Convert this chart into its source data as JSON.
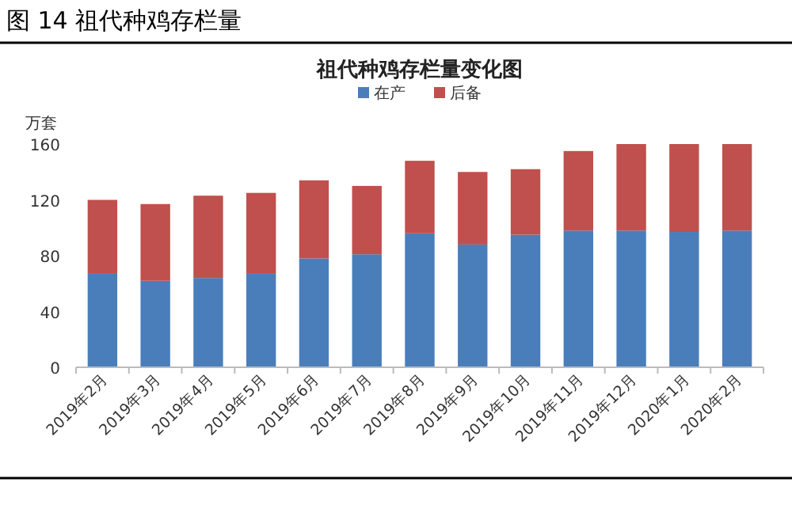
{
  "chart_data": {
    "type": "bar",
    "stacked": true,
    "title": "图 14 祖代种鸡存栏量",
    "subtitle": "祖代种鸡存栏量变化图",
    "ylabel": "万套",
    "categories": [
      "2019年2月",
      "2019年3月",
      "2019年4月",
      "2019年5月",
      "2019年6月",
      "2019年7月",
      "2019年8月",
      "2019年9月",
      "2019年10月",
      "2019年11月",
      "2019年12月",
      "2020年1月",
      "2020年2月"
    ],
    "series": [
      {
        "name": "在产",
        "color": "#4a7ebb",
        "values": [
          67,
          62,
          64,
          67,
          78,
          81,
          96,
          88,
          95,
          98,
          98,
          97,
          98
        ]
      },
      {
        "name": "后备",
        "color": "#c0504d",
        "values": [
          53,
          55,
          59,
          58,
          56,
          49,
          52,
          52,
          47,
          57,
          62,
          63,
          62
        ]
      }
    ],
    "ylim": [
      0,
      160
    ],
    "yticks": [
      0,
      40,
      80,
      120,
      160
    ],
    "grid": false,
    "legend": "top"
  }
}
